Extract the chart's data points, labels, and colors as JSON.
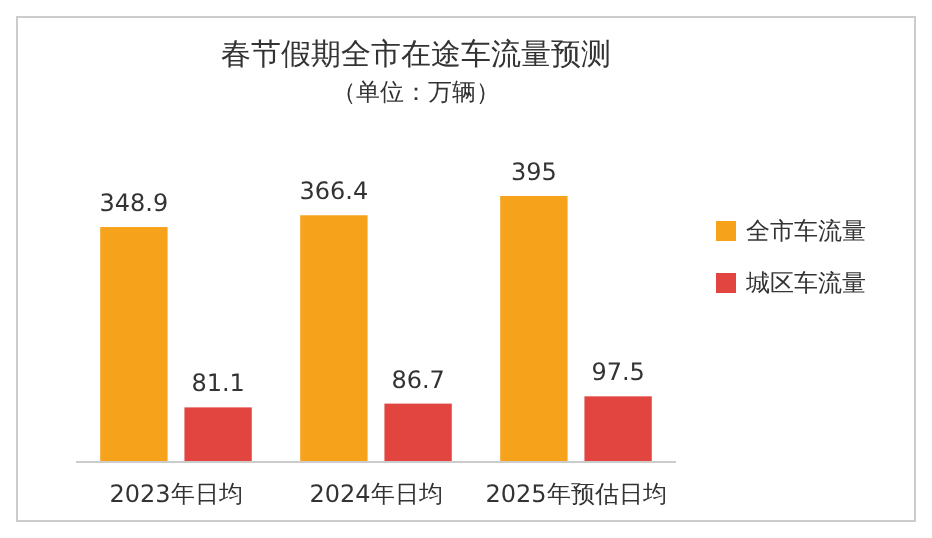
{
  "chart_data": {
    "type": "bar",
    "title": "春节假期全市在途车流量预测",
    "subtitle": "（单位：万辆）",
    "categories": [
      "2023年日均",
      "2024年日均",
      "2025年预估日均"
    ],
    "series": [
      {
        "name": "全市车流量",
        "color": "#f7a21b",
        "values": [
          348.9,
          366.4,
          395
        ]
      },
      {
        "name": "城区车流量",
        "color": "#e2453f",
        "values": [
          81.1,
          86.7,
          97.5
        ]
      }
    ],
    "data_labels": true,
    "legend": "right"
  }
}
